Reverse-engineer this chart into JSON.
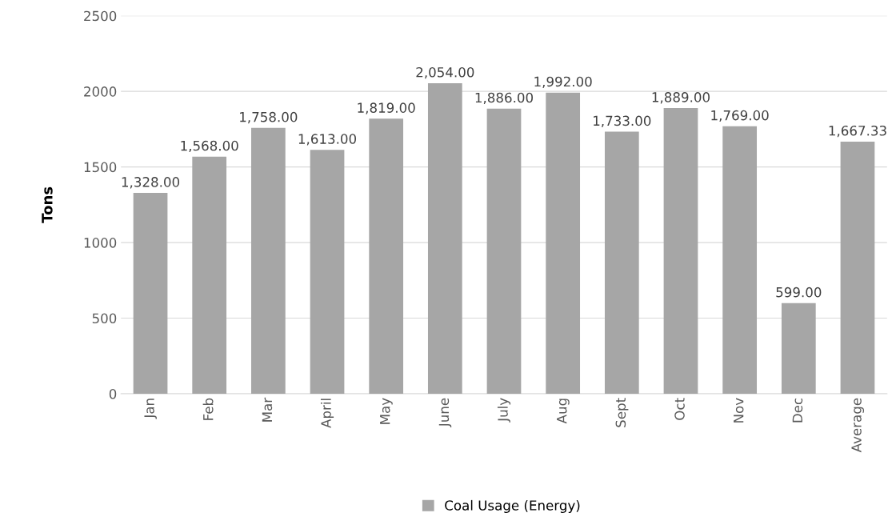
{
  "chart_data": {
    "type": "bar",
    "ylabel": "Tons",
    "categories": [
      "Jan",
      "Feb",
      "Mar",
      "April",
      "May",
      "June",
      "July",
      "Aug",
      "Sept",
      "Oct",
      "Nov",
      "Dec",
      "Average"
    ],
    "series": [
      {
        "name": "Coal Usage (Energy)",
        "color": "#a6a6a6",
        "values": [
          1328,
          1568,
          1758,
          1613,
          1819,
          2054,
          1886,
          1992,
          1733,
          1889,
          1769,
          599,
          1667.33
        ],
        "value_labels": [
          "1,328.00",
          "1,568.00",
          "1,758.00",
          "1,613.00",
          "1,819.00",
          "2,054.00",
          "1,886.00",
          "1,992.00",
          "1,733.00",
          "1,889.00",
          "1,769.00",
          "599.00",
          "1,667.33"
        ]
      }
    ],
    "ylim": [
      0,
      2500
    ],
    "yticks": [
      0,
      500,
      1000,
      1500,
      2000,
      2500
    ],
    "grid": "y",
    "legend": "bottom"
  }
}
